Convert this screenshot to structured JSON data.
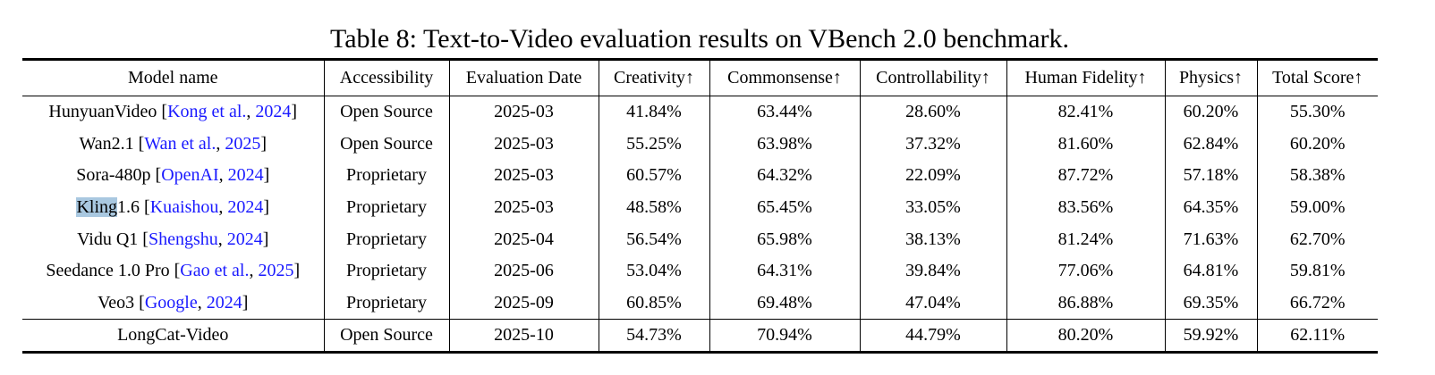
{
  "table": {
    "title": "Table 8: Text-to-Video evaluation results on VBench 2.0 benchmark.",
    "header": [
      "Model name",
      "Accessibility",
      "Evaluation Date",
      "Creativity↑",
      "Commonsense↑",
      "Controllability↑",
      "Human Fidelity↑",
      "Physics↑",
      "Total Score↑"
    ],
    "rows": [
      {
        "model": [
          {
            "text": "HunyuanVideo ["
          },
          {
            "text": "Kong et al.",
            "link": true
          },
          {
            "text": ", "
          },
          {
            "text": "2024",
            "link": true
          },
          {
            "text": "]"
          }
        ],
        "cells": [
          "Open Source",
          "2025-03",
          "41.84%",
          "63.44%",
          "28.60%",
          "82.41%",
          "60.20%",
          "55.30%"
        ]
      },
      {
        "model": [
          {
            "text": "Wan2.1 ["
          },
          {
            "text": "Wan et al.",
            "link": true
          },
          {
            "text": ", "
          },
          {
            "text": "2025",
            "link": true
          },
          {
            "text": "]"
          }
        ],
        "cells": [
          "Open Source",
          "2025-03",
          "55.25%",
          "63.98%",
          "37.32%",
          "81.60%",
          "62.84%",
          "60.20%"
        ]
      },
      {
        "model": [
          {
            "text": "Sora-480p ["
          },
          {
            "text": "OpenAI",
            "link": true
          },
          {
            "text": ", "
          },
          {
            "text": "2024",
            "link": true
          },
          {
            "text": "]"
          }
        ],
        "cells": [
          "Proprietary",
          "2025-03",
          "60.57%",
          "64.32%",
          "22.09%",
          "87.72%",
          "57.18%",
          "58.38%"
        ]
      },
      {
        "model": [
          {
            "text": "Kling",
            "highlight": true
          },
          {
            "text": "1.6 ["
          },
          {
            "text": "Kuaishou",
            "link": true
          },
          {
            "text": ", "
          },
          {
            "text": "2024",
            "link": true
          },
          {
            "text": "]"
          }
        ],
        "cells": [
          "Proprietary",
          "2025-03",
          "48.58%",
          "65.45%",
          "33.05%",
          "83.56%",
          "64.35%",
          "59.00%"
        ]
      },
      {
        "model": [
          {
            "text": "Vidu Q1 ["
          },
          {
            "text": "Shengshu",
            "link": true
          },
          {
            "text": ", "
          },
          {
            "text": "2024",
            "link": true
          },
          {
            "text": "]"
          }
        ],
        "cells": [
          "Proprietary",
          "2025-04",
          "56.54%",
          "65.98%",
          "38.13%",
          "81.24%",
          "71.63%",
          "62.70%"
        ]
      },
      {
        "model": [
          {
            "text": "Seedance 1.0 Pro ["
          },
          {
            "text": "Gao et al.",
            "link": true
          },
          {
            "text": ", "
          },
          {
            "text": "2025",
            "link": true
          },
          {
            "text": "]"
          }
        ],
        "cells": [
          "Proprietary",
          "2025-06",
          "53.04%",
          "64.31%",
          "39.84%",
          "77.06%",
          "64.81%",
          "59.81%"
        ]
      },
      {
        "model": [
          {
            "text": "Veo3 ["
          },
          {
            "text": "Google",
            "link": true
          },
          {
            "text": ", "
          },
          {
            "text": "2024",
            "link": true
          },
          {
            "text": "]"
          }
        ],
        "cells": [
          "Proprietary",
          "2025-09",
          "60.85%",
          "69.48%",
          "47.04%",
          "86.88%",
          "69.35%",
          "66.72%"
        ]
      },
      {
        "model": [
          {
            "text": "LongCat-Video"
          }
        ],
        "cells": [
          "Open Source",
          "2025-10",
          "54.73%",
          "70.94%",
          "44.79%",
          "80.20%",
          "59.92%",
          "62.11%"
        ]
      }
    ]
  }
}
